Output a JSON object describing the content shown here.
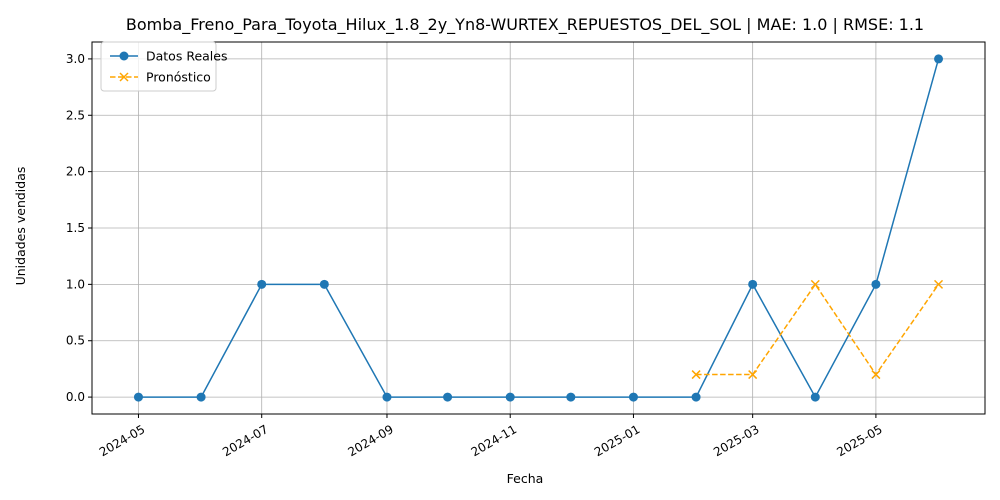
{
  "chart_data": {
    "type": "line",
    "title": "Bomba_Freno_Para_Toyota_Hilux_1.8_2y_Yn8-WURTEX_REPUESTOS_DEL_SOL | MAE: 1.0 | RMSE: 1.1",
    "xlabel": "Fecha",
    "ylabel": "Unidades vendidas",
    "xlim": [
      "2024-04-08",
      "2025-06-24"
    ],
    "ylim": [
      -0.15,
      3.15
    ],
    "grid": true,
    "legend_position": "upper-left",
    "x_ticks": [
      "2024-05",
      "2024-07",
      "2024-09",
      "2024-11",
      "2025-01",
      "2025-03",
      "2025-05"
    ],
    "y_ticks": [
      "0.0",
      "0.5",
      "1.0",
      "1.5",
      "2.0",
      "2.5",
      "3.0"
    ],
    "series": [
      {
        "name": "Datos Reales",
        "color": "#1f77b4",
        "style": "solid",
        "marker": "circle",
        "x": [
          "2024-05-01",
          "2024-06-01",
          "2024-07-01",
          "2024-08-01",
          "2024-09-01",
          "2024-10-01",
          "2024-11-01",
          "2024-12-01",
          "2025-01-01",
          "2025-02-01",
          "2025-03-01",
          "2025-04-01",
          "2025-05-01",
          "2025-06-01"
        ],
        "values": [
          0,
          0,
          1,
          1,
          0,
          0,
          0,
          0,
          0,
          0,
          1,
          0,
          1,
          3
        ]
      },
      {
        "name": "Pronóstico",
        "color": "#ffa500",
        "style": "dashed",
        "marker": "x",
        "x": [
          "2025-02-01",
          "2025-03-01",
          "2025-04-01",
          "2025-05-01",
          "2025-06-01"
        ],
        "values": [
          0.2,
          0.2,
          1.0,
          0.2,
          1.0
        ]
      }
    ]
  }
}
